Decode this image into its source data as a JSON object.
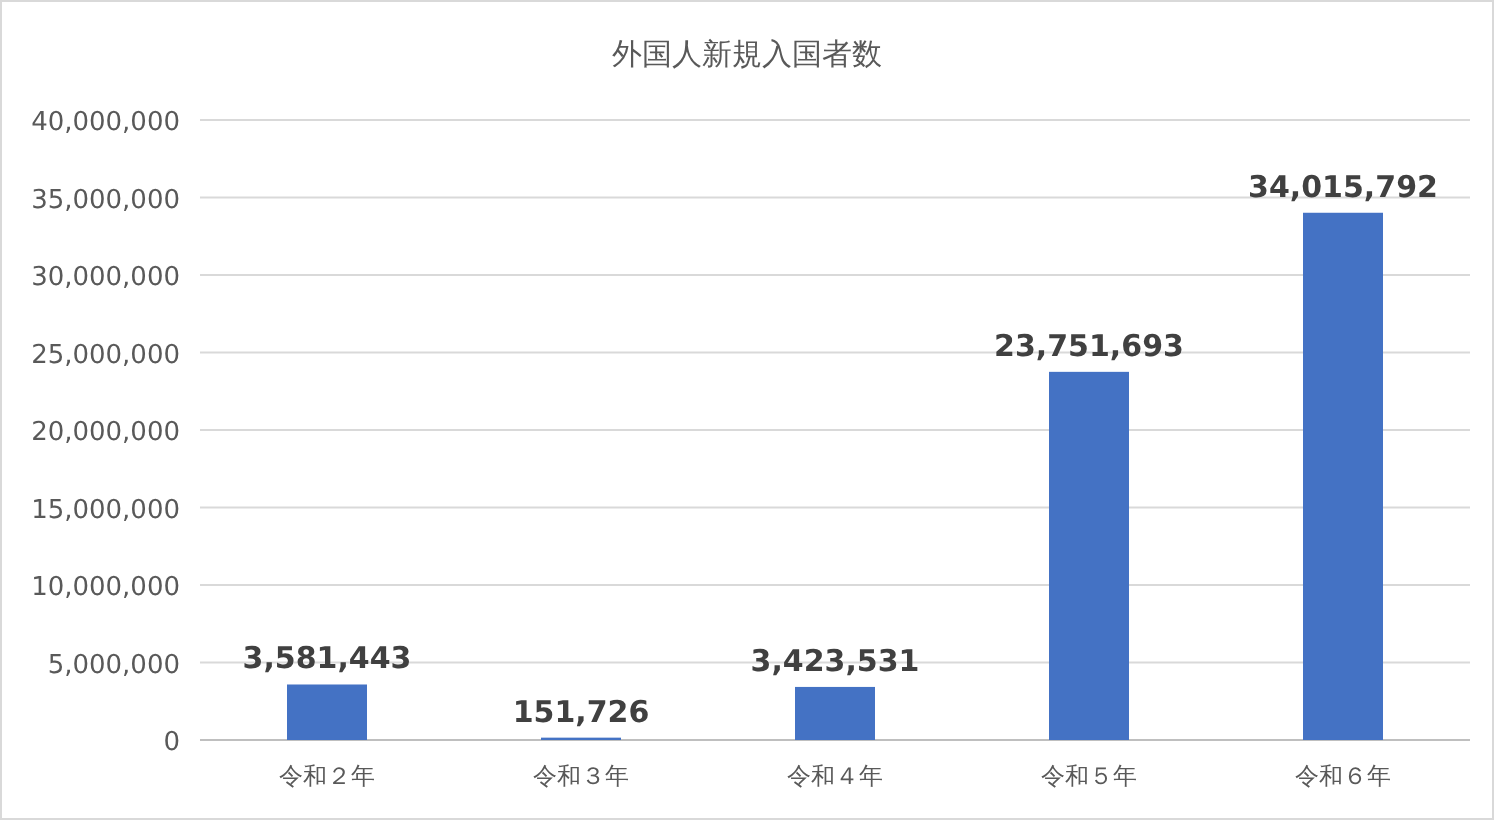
{
  "chart_data": {
    "type": "bar",
    "title": "外国人新規入国者数",
    "categories": [
      "令和２年",
      "令和３年",
      "令和４年",
      "令和５年",
      "令和６年"
    ],
    "values": [
      3581443,
      151726,
      3423531,
      23751693,
      34015792
    ],
    "value_labels": [
      "3,581,443",
      "151,726",
      "3,423,531",
      "23,751,693",
      "34,015,792"
    ],
    "color": "#4472c4",
    "ylim": [
      0,
      40000000
    ],
    "yticks": [
      0,
      {
        "value": 5000000,
        "label": "5,000,000"
      },
      {
        "value": 10000000,
        "label": "10,000,000"
      },
      {
        "value": 15000000,
        "label": "15,000,000"
      },
      {
        "value": 20000000,
        "label": "20,000,000"
      },
      {
        "value": 25000000,
        "label": "25,000,000"
      },
      {
        "value": 30000000,
        "label": "30,000,000"
      },
      {
        "value": 35000000,
        "label": "35,000,000"
      },
      {
        "value": 40000000,
        "label": "40,000,000"
      }
    ],
    "grid": "y"
  }
}
